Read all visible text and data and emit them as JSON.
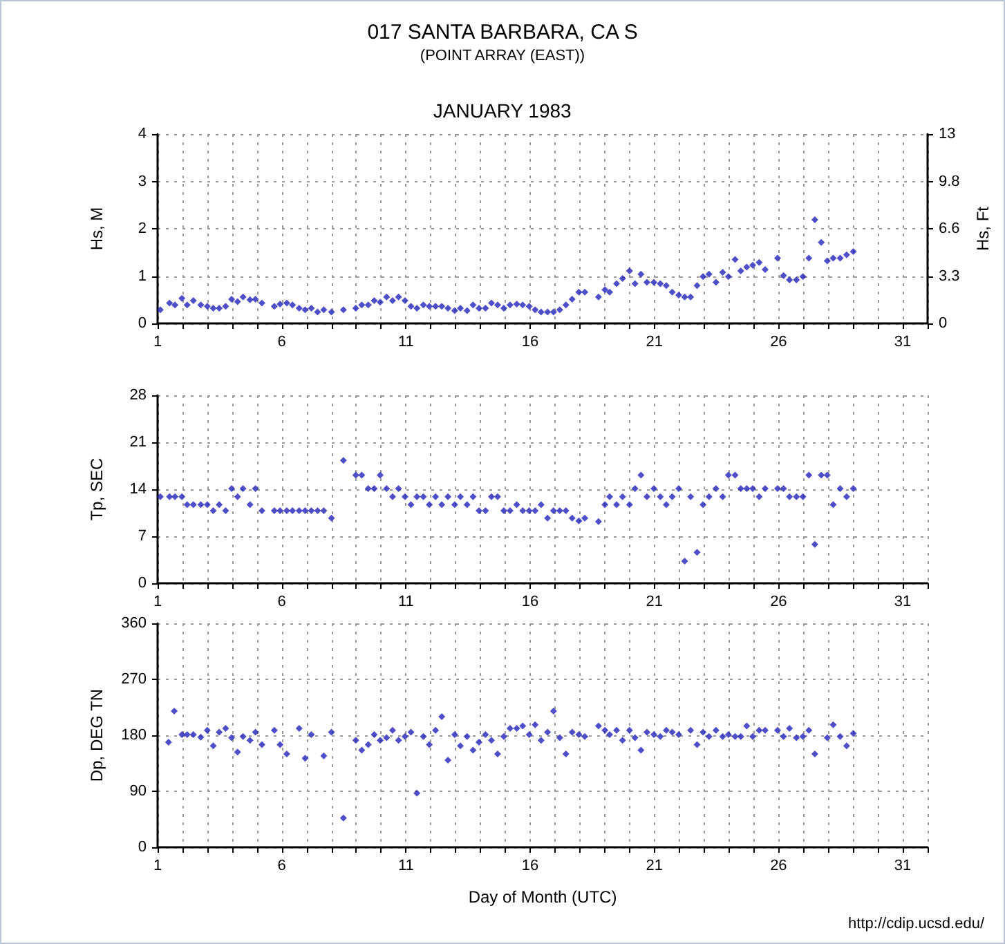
{
  "chart_data": [
    {
      "type": "scatter",
      "title": "017 SANTA BARBARA, CA S",
      "subtitle": "(POINT ARRAY (EAST))",
      "annotations": [
        "JANUARY 1983"
      ],
      "ylabel": "Hs, M",
      "y2label": "Hs, Ft",
      "marker": "diamond",
      "grid": true,
      "x": [
        1.11,
        1.48,
        1.7,
        1.98,
        2.19,
        2.44,
        2.74,
        3.0,
        3.24,
        3.48,
        3.74,
        3.98,
        4.22,
        4.44,
        4.72,
        4.94,
        5.2,
        5.7,
        5.93,
        6.2,
        6.43,
        6.7,
        6.94,
        7.19,
        7.44,
        7.69,
        8.0,
        8.48,
        8.98,
        9.22,
        9.48,
        9.72,
        9.96,
        10.22,
        10.46,
        10.7,
        10.96,
        11.2,
        11.44,
        11.7,
        11.94,
        12.19,
        12.44,
        12.69,
        12.96,
        13.19,
        13.46,
        13.7,
        13.94,
        14.2,
        14.44,
        14.69,
        14.94,
        15.19,
        15.46,
        15.7,
        15.96,
        16.2,
        16.44,
        16.7,
        16.94,
        17.19,
        17.44,
        17.69,
        17.96,
        18.2,
        18.75,
        19.01,
        19.2,
        19.48,
        19.72,
        20.0,
        20.22,
        20.46,
        20.7,
        20.98,
        21.24,
        21.48,
        21.72,
        21.98,
        22.22,
        22.46,
        22.72,
        22.96,
        23.2,
        23.48,
        23.75,
        23.98,
        24.25,
        24.48,
        24.72,
        24.96,
        25.22,
        25.46,
        25.96,
        26.2,
        26.44,
        26.72,
        26.98,
        27.22,
        27.46,
        27.72,
        27.96,
        28.2,
        28.48,
        28.74,
        29.01
      ],
      "series": [
        {
          "color": "#2222bb",
          "values": [
            0.29,
            0.43,
            0.39,
            0.53,
            0.39,
            0.48,
            0.39,
            0.36,
            0.32,
            0.32,
            0.36,
            0.51,
            0.46,
            0.56,
            0.5,
            0.51,
            0.43,
            0.36,
            0.41,
            0.43,
            0.39,
            0.32,
            0.29,
            0.32,
            0.24,
            0.29,
            0.24,
            0.29,
            0.32,
            0.39,
            0.39,
            0.48,
            0.45,
            0.56,
            0.48,
            0.56,
            0.48,
            0.36,
            0.32,
            0.39,
            0.36,
            0.36,
            0.36,
            0.32,
            0.27,
            0.32,
            0.27,
            0.39,
            0.32,
            0.32,
            0.43,
            0.39,
            0.32,
            0.39,
            0.41,
            0.39,
            0.36,
            0.29,
            0.24,
            0.24,
            0.24,
            0.29,
            0.39,
            0.51,
            0.66,
            0.66,
            0.56,
            0.71,
            0.66,
            0.84,
            0.95,
            1.11,
            0.84,
            1.04,
            0.87,
            0.87,
            0.84,
            0.8,
            0.66,
            0.6,
            0.56,
            0.56,
            0.8,
            0.99,
            1.04,
            0.87,
            1.08,
            0.99,
            1.35,
            1.11,
            1.19,
            1.23,
            1.29,
            1.14,
            1.38,
            1.01,
            0.92,
            0.92,
            0.99,
            1.38,
            2.19,
            1.71,
            1.32,
            1.38,
            1.38,
            1.45,
            1.52
          ]
        }
      ],
      "xlim": [
        1,
        32
      ],
      "xticks": [
        1,
        {
          "value": 2,
          "label": null
        },
        {
          "value": 3,
          "label": null
        },
        {
          "value": 4,
          "label": null
        },
        {
          "value": 5,
          "label": null
        },
        6,
        {
          "value": 7,
          "label": null
        },
        {
          "value": 8,
          "label": null
        },
        {
          "value": 9,
          "label": null
        },
        {
          "value": 10,
          "label": null
        },
        11,
        {
          "value": 12,
          "label": null
        },
        {
          "value": 13,
          "label": null
        },
        {
          "value": 14,
          "label": null
        },
        {
          "value": 15,
          "label": null
        },
        16,
        {
          "value": 17,
          "label": null
        },
        {
          "value": 18,
          "label": null
        },
        {
          "value": 19,
          "label": null
        },
        {
          "value": 20,
          "label": null
        },
        21,
        {
          "value": 22,
          "label": null
        },
        {
          "value": 23,
          "label": null
        },
        {
          "value": 24,
          "label": null
        },
        {
          "value": 25,
          "label": null
        },
        26,
        {
          "value": 27,
          "label": null
        },
        {
          "value": 28,
          "label": null
        },
        {
          "value": 29,
          "label": null
        },
        {
          "value": 30,
          "label": null
        },
        31,
        {
          "value": 32,
          "label": null
        }
      ],
      "ylim": [
        0,
        4
      ],
      "yticks": [
        0,
        1,
        2,
        3,
        4
      ],
      "y2lim": [
        0,
        13.12
      ],
      "y2ticks": [
        0,
        {
          "value": 3.28,
          "label": "3.3"
        },
        {
          "value": 6.56,
          "label": "6.6"
        },
        {
          "value": 9.84,
          "label": "9.8"
        },
        {
          "value": 13.12,
          "label": "13"
        }
      ]
    },
    {
      "type": "scatter",
      "ylabel": "Tp, SEC",
      "marker": "diamond",
      "grid": true,
      "x": [
        1.11,
        1.48,
        1.7,
        1.98,
        2.19,
        2.44,
        2.74,
        3.0,
        3.24,
        3.48,
        3.74,
        3.98,
        4.22,
        4.44,
        4.72,
        4.94,
        5.2,
        5.7,
        5.93,
        6.2,
        6.43,
        6.7,
        6.94,
        7.19,
        7.44,
        7.69,
        8.0,
        8.48,
        8.98,
        9.22,
        9.48,
        9.72,
        9.96,
        10.22,
        10.46,
        10.7,
        10.96,
        11.2,
        11.44,
        11.7,
        11.94,
        12.19,
        12.44,
        12.69,
        12.96,
        13.19,
        13.46,
        13.7,
        13.94,
        14.2,
        14.44,
        14.69,
        14.94,
        15.19,
        15.46,
        15.7,
        15.96,
        16.2,
        16.44,
        16.7,
        16.94,
        17.19,
        17.44,
        17.69,
        17.96,
        18.2,
        18.75,
        19.01,
        19.2,
        19.48,
        19.72,
        20.0,
        20.22,
        20.46,
        20.7,
        20.98,
        21.24,
        21.48,
        21.72,
        21.98,
        22.22,
        22.46,
        22.72,
        22.96,
        23.2,
        23.48,
        23.75,
        23.98,
        24.25,
        24.48,
        24.72,
        24.96,
        25.22,
        25.46,
        25.96,
        26.2,
        26.44,
        26.72,
        26.98,
        27.22,
        27.46,
        27.72,
        27.96,
        28.2,
        28.48,
        28.74,
        29.01
      ],
      "series": [
        {
          "color": "#2222bb",
          "values": [
            12.9,
            12.9,
            12.9,
            12.9,
            11.7,
            11.7,
            11.7,
            11.7,
            10.8,
            11.7,
            10.8,
            14.1,
            12.9,
            14.1,
            11.7,
            14.1,
            10.8,
            10.8,
            10.8,
            10.8,
            10.8,
            10.8,
            10.8,
            10.8,
            10.8,
            10.8,
            9.7,
            18.3,
            16.1,
            16.1,
            14.1,
            14.1,
            16.1,
            14.1,
            12.9,
            14.1,
            12.9,
            11.7,
            12.9,
            12.9,
            11.7,
            12.9,
            11.7,
            12.9,
            11.7,
            12.9,
            11.7,
            12.9,
            10.8,
            10.8,
            12.9,
            12.9,
            10.8,
            10.8,
            11.7,
            10.8,
            10.8,
            10.8,
            11.7,
            9.7,
            10.8,
            10.8,
            10.8,
            9.7,
            9.3,
            9.7,
            9.2,
            11.7,
            12.9,
            11.7,
            12.9,
            11.7,
            14.1,
            16.1,
            12.9,
            14.1,
            12.9,
            11.7,
            12.9,
            14.1,
            3.3,
            12.9,
            4.6,
            11.7,
            12.9,
            14.1,
            12.9,
            16.1,
            16.1,
            14.1,
            14.1,
            14.1,
            12.9,
            14.1,
            14.1,
            14.1,
            12.9,
            12.9,
            12.9,
            16.1,
            5.8,
            16.1,
            16.1,
            11.7,
            14.1,
            12.9,
            14.1
          ]
        }
      ],
      "xlim": [
        1,
        32
      ],
      "xticks": [
        1,
        {
          "value": 2,
          "label": null
        },
        {
          "value": 3,
          "label": null
        },
        {
          "value": 4,
          "label": null
        },
        {
          "value": 5,
          "label": null
        },
        6,
        {
          "value": 7,
          "label": null
        },
        {
          "value": 8,
          "label": null
        },
        {
          "value": 9,
          "label": null
        },
        {
          "value": 10,
          "label": null
        },
        11,
        {
          "value": 12,
          "label": null
        },
        {
          "value": 13,
          "label": null
        },
        {
          "value": 14,
          "label": null
        },
        {
          "value": 15,
          "label": null
        },
        16,
        {
          "value": 17,
          "label": null
        },
        {
          "value": 18,
          "label": null
        },
        {
          "value": 19,
          "label": null
        },
        {
          "value": 20,
          "label": null
        },
        21,
        {
          "value": 22,
          "label": null
        },
        {
          "value": 23,
          "label": null
        },
        {
          "value": 24,
          "label": null
        },
        {
          "value": 25,
          "label": null
        },
        26,
        {
          "value": 27,
          "label": null
        },
        {
          "value": 28,
          "label": null
        },
        {
          "value": 29,
          "label": null
        },
        {
          "value": 30,
          "label": null
        },
        31,
        {
          "value": 32,
          "label": null
        }
      ],
      "ylim": [
        0,
        28
      ],
      "yticks": [
        0,
        7,
        14,
        21,
        28
      ]
    },
    {
      "type": "scatter",
      "ylabel": "Dp, DEG TN",
      "xlabel": "Day of Month (UTC)",
      "annotations": [
        "http://cdip.ucsd.edu/"
      ],
      "marker": "diamond",
      "grid": true,
      "x": [
        1.44,
        1.67,
        1.98,
        2.19,
        2.44,
        2.74,
        3.0,
        3.24,
        3.48,
        3.74,
        3.98,
        4.22,
        4.44,
        4.72,
        4.94,
        5.2,
        5.7,
        5.93,
        6.2,
        6.7,
        6.94,
        7.19,
        7.69,
        8.0,
        8.48,
        8.98,
        9.22,
        9.48,
        9.72,
        9.96,
        10.22,
        10.46,
        10.7,
        10.96,
        11.2,
        11.44,
        11.7,
        11.94,
        12.19,
        12.44,
        12.69,
        12.96,
        13.19,
        13.46,
        13.7,
        13.94,
        14.2,
        14.44,
        14.69,
        14.94,
        15.19,
        15.46,
        15.7,
        15.96,
        16.2,
        16.44,
        16.7,
        16.94,
        17.19,
        17.44,
        17.69,
        17.96,
        18.2,
        18.75,
        19.01,
        19.2,
        19.48,
        19.72,
        20.0,
        20.22,
        20.46,
        20.7,
        20.98,
        21.24,
        21.48,
        21.72,
        21.98,
        22.46,
        22.72,
        22.96,
        23.2,
        23.48,
        23.75,
        23.98,
        24.25,
        24.48,
        24.72,
        24.96,
        25.22,
        25.46,
        25.96,
        26.2,
        26.44,
        26.72,
        26.98,
        27.22,
        27.46,
        27.96,
        28.2,
        28.48,
        28.74,
        29.01
      ],
      "series": [
        {
          "color": "#2222bb",
          "values": [
            169,
            219,
            181,
            181,
            181,
            177,
            188,
            163,
            185,
            191,
            176,
            153,
            178,
            172,
            185,
            165,
            188,
            165,
            150,
            191,
            143,
            181,
            147,
            185,
            47,
            172,
            156,
            165,
            181,
            172,
            176,
            188,
            172,
            178,
            185,
            87,
            178,
            165,
            188,
            210,
            140,
            181,
            163,
            178,
            156,
            169,
            181,
            172,
            150,
            178,
            191,
            191,
            195,
            181,
            197,
            172,
            185,
            219,
            176,
            150,
            185,
            181,
            178,
            195,
            188,
            181,
            188,
            172,
            188,
            176,
            156,
            185,
            181,
            178,
            188,
            185,
            181,
            188,
            165,
            185,
            178,
            188,
            178,
            181,
            178,
            178,
            195,
            178,
            188,
            188,
            188,
            178,
            191,
            176,
            178,
            188,
            150,
            176,
            197,
            178,
            163,
            183
          ]
        }
      ],
      "xlim": [
        1,
        32
      ],
      "xticks": [
        1,
        {
          "value": 2,
          "label": null
        },
        {
          "value": 3,
          "label": null
        },
        {
          "value": 4,
          "label": null
        },
        {
          "value": 5,
          "label": null
        },
        6,
        {
          "value": 7,
          "label": null
        },
        {
          "value": 8,
          "label": null
        },
        {
          "value": 9,
          "label": null
        },
        {
          "value": 10,
          "label": null
        },
        11,
        {
          "value": 12,
          "label": null
        },
        {
          "value": 13,
          "label": null
        },
        {
          "value": 14,
          "label": null
        },
        {
          "value": 15,
          "label": null
        },
        16,
        {
          "value": 17,
          "label": null
        },
        {
          "value": 18,
          "label": null
        },
        {
          "value": 19,
          "label": null
        },
        {
          "value": 20,
          "label": null
        },
        21,
        {
          "value": 22,
          "label": null
        },
        {
          "value": 23,
          "label": null
        },
        {
          "value": 24,
          "label": null
        },
        {
          "value": 25,
          "label": null
        },
        26,
        {
          "value": 27,
          "label": null
        },
        {
          "value": 28,
          "label": null
        },
        {
          "value": 29,
          "label": null
        },
        {
          "value": 30,
          "label": null
        },
        31,
        {
          "value": 32,
          "label": null
        }
      ],
      "ylim": [
        0,
        360
      ],
      "yticks": [
        0,
        90,
        180,
        270,
        360
      ]
    }
  ]
}
